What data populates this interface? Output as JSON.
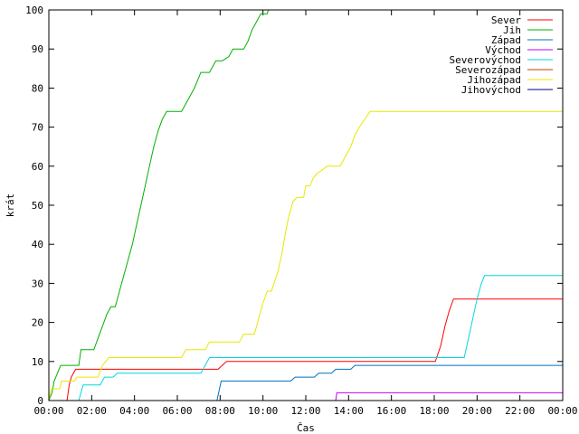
{
  "chart_data": {
    "type": "line",
    "title": "",
    "xlabel": "Čas",
    "ylabel": "krát",
    "xlim": [
      0,
      24
    ],
    "ylim": [
      0,
      100
    ],
    "x_ticks": [
      0,
      2,
      4,
      6,
      8,
      10,
      12,
      14,
      16,
      18,
      20,
      22,
      24
    ],
    "x_tick_labels": [
      "00:00",
      "02:00",
      "04:00",
      "06:00",
      "08:00",
      "10:00",
      "12:00",
      "14:00",
      "16:00",
      "18:00",
      "20:00",
      "22:00",
      "00:00"
    ],
    "y_ticks": [
      0,
      10,
      20,
      30,
      40,
      50,
      60,
      70,
      80,
      90,
      100
    ],
    "y_tick_labels": [
      "0",
      "10",
      "20",
      "30",
      "40",
      "50",
      "60",
      "70",
      "80",
      "90",
      "100"
    ],
    "grid": false,
    "legend_position": "top-right",
    "series": [
      {
        "name": "Sever",
        "color": "#ff0000",
        "points": [
          [
            0.85,
            0
          ],
          [
            0.95,
            4
          ],
          [
            1.05,
            6
          ],
          [
            1.25,
            8
          ],
          [
            7.9,
            8
          ],
          [
            8.1,
            9
          ],
          [
            8.3,
            10
          ],
          [
            18.05,
            10
          ],
          [
            18.3,
            14
          ],
          [
            18.5,
            19
          ],
          [
            18.7,
            23
          ],
          [
            18.9,
            26
          ],
          [
            24,
            26
          ]
        ]
      },
      {
        "name": "Jih",
        "color": "#00b000",
        "points": [
          [
            0,
            0
          ],
          [
            0.15,
            2
          ],
          [
            0.25,
            5
          ],
          [
            0.4,
            7
          ],
          [
            0.55,
            9
          ],
          [
            1.4,
            9
          ],
          [
            1.5,
            13
          ],
          [
            2.1,
            13
          ],
          [
            2.3,
            16
          ],
          [
            2.5,
            19
          ],
          [
            2.7,
            22
          ],
          [
            2.9,
            24
          ],
          [
            3.1,
            24
          ],
          [
            3.3,
            28
          ],
          [
            3.5,
            32
          ],
          [
            3.7,
            36
          ],
          [
            3.9,
            40
          ],
          [
            4.1,
            45
          ],
          [
            4.3,
            50
          ],
          [
            4.5,
            55
          ],
          [
            4.7,
            60
          ],
          [
            4.9,
            65
          ],
          [
            5.1,
            69
          ],
          [
            5.3,
            72
          ],
          [
            5.5,
            74
          ],
          [
            6.2,
            74
          ],
          [
            6.5,
            77
          ],
          [
            6.8,
            80
          ],
          [
            7.1,
            84
          ],
          [
            7.5,
            84
          ],
          [
            7.8,
            87
          ],
          [
            8.1,
            87
          ],
          [
            8.4,
            88
          ],
          [
            8.6,
            90
          ],
          [
            9.1,
            90
          ],
          [
            9.3,
            92
          ],
          [
            9.5,
            95
          ],
          [
            9.7,
            97
          ],
          [
            9.9,
            99
          ],
          [
            10.2,
            99
          ],
          [
            10.25,
            100
          ]
        ]
      },
      {
        "name": "Západ",
        "color": "#0070c0",
        "points": [
          [
            7.85,
            0
          ],
          [
            8.05,
            5
          ],
          [
            11.3,
            5
          ],
          [
            11.5,
            6
          ],
          [
            12.4,
            6
          ],
          [
            12.6,
            7
          ],
          [
            13.2,
            7
          ],
          [
            13.4,
            8
          ],
          [
            14.1,
            8
          ],
          [
            14.3,
            9
          ],
          [
            24,
            9
          ]
        ]
      },
      {
        "name": "Východ",
        "color": "#c000ff",
        "points": [
          [
            13.4,
            0
          ],
          [
            13.45,
            2
          ],
          [
            24,
            2
          ]
        ]
      },
      {
        "name": "Severovýchod",
        "color": "#00d8e0",
        "points": [
          [
            1.4,
            0
          ],
          [
            1.5,
            2
          ],
          [
            1.6,
            4
          ],
          [
            2.4,
            4
          ],
          [
            2.6,
            6
          ],
          [
            3.0,
            6
          ],
          [
            3.2,
            7
          ],
          [
            7.1,
            7
          ],
          [
            7.3,
            9
          ],
          [
            7.5,
            11
          ],
          [
            19.4,
            11
          ],
          [
            19.6,
            16
          ],
          [
            19.8,
            21
          ],
          [
            20.0,
            26
          ],
          [
            20.2,
            30
          ],
          [
            20.35,
            32
          ],
          [
            24,
            32
          ]
        ]
      },
      {
        "name": "Severozápad",
        "color": "#c04000",
        "points": [
          [
            24,
            0
          ]
        ]
      },
      {
        "name": "Jihozápad",
        "color": "#e8e800",
        "points": [
          [
            0,
            0
          ],
          [
            0.1,
            3
          ],
          [
            0.5,
            3
          ],
          [
            0.6,
            5
          ],
          [
            1.2,
            5
          ],
          [
            1.3,
            6
          ],
          [
            2.3,
            6
          ],
          [
            2.5,
            9
          ],
          [
            2.8,
            11
          ],
          [
            6.2,
            11
          ],
          [
            6.4,
            13
          ],
          [
            7.3,
            13
          ],
          [
            7.5,
            15
          ],
          [
            8.9,
            15
          ],
          [
            9.1,
            17
          ],
          [
            9.6,
            17
          ],
          [
            9.8,
            21
          ],
          [
            10.0,
            25
          ],
          [
            10.2,
            28
          ],
          [
            10.4,
            28
          ],
          [
            10.7,
            33
          ],
          [
            10.9,
            38
          ],
          [
            11.05,
            43
          ],
          [
            11.2,
            47
          ],
          [
            11.4,
            51
          ],
          [
            11.6,
            52
          ],
          [
            11.9,
            52
          ],
          [
            12.0,
            55
          ],
          [
            12.2,
            55
          ],
          [
            12.35,
            57
          ],
          [
            12.5,
            58
          ],
          [
            12.75,
            59
          ],
          [
            13.0,
            60
          ],
          [
            13.6,
            60
          ],
          [
            13.8,
            62
          ],
          [
            14.1,
            65
          ],
          [
            14.3,
            68
          ],
          [
            14.5,
            70
          ],
          [
            14.75,
            72
          ],
          [
            15.0,
            74
          ],
          [
            24,
            74
          ]
        ]
      },
      {
        "name": "Jihovýchod",
        "color": "#00008b",
        "points": [
          [
            24,
            0
          ]
        ]
      }
    ]
  }
}
